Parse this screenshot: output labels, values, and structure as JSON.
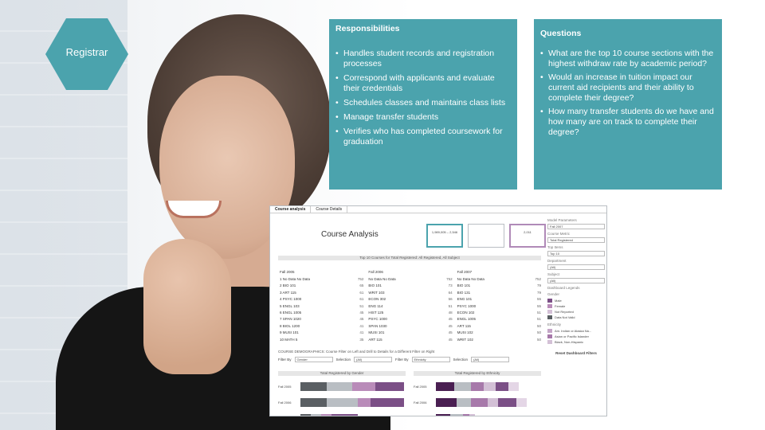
{
  "role": {
    "label": "Registrar"
  },
  "responsibilities": {
    "title": "Responsibilities",
    "items": [
      "Handles student records and registration processes",
      "Correspond with applicants and evaluate their credentials",
      "Schedules classes and maintains class lists",
      "Manage transfer students",
      "Verifies who has completed coursework for graduation"
    ]
  },
  "questions": {
    "title": "Questions",
    "items": [
      "What are the top 10 course sections with the highest withdraw rate by academic period?",
      "Would an increase in tuition impact our current aid recipients and their ability to complete their degree?",
      "How many transfer students do we have and how many are on track to complete their degree?"
    ]
  },
  "dashboard": {
    "tabs": [
      "Course analysis",
      "Course Details"
    ],
    "title": "Course Analysis",
    "kpis": [
      "1,989,005 – 2,546",
      "",
      "2,011"
    ],
    "top10_header": "Top 10 Courses for Total Registered: All Registered, All Subject",
    "columns": [
      {
        "head": "Fall 2005",
        "rows": [
          [
            "1  No Data No Data",
            "752"
          ],
          [
            "2  BIO 101",
            "65"
          ],
          [
            "3  ART 115",
            "61"
          ],
          [
            "4  PSYC 1000",
            "61"
          ],
          [
            "5  ENGL 103",
            "51"
          ],
          [
            "6  ENGL 1005",
            "45"
          ],
          [
            "7  SPAN 1020",
            "45"
          ],
          [
            "8  BIOL 1200",
            "41"
          ],
          [
            "9  MUSI 101",
            "41"
          ],
          [
            "10 MATH 5",
            "35"
          ]
        ]
      },
      {
        "head": "Fall 2006",
        "rows": [
          [
            "No Data No Data",
            "752"
          ],
          [
            "BIO 101",
            "73"
          ],
          [
            "WRIT 103",
            "64"
          ],
          [
            "ECON 302",
            "56"
          ],
          [
            "ENG 114",
            "51"
          ],
          [
            "HIST 125",
            "48"
          ],
          [
            "PSYC 1000",
            "45"
          ],
          [
            "SPAN 1030",
            "45"
          ],
          [
            "MUSI 101",
            "45"
          ],
          [
            "ART 115",
            "45"
          ]
        ]
      },
      {
        "head": "Fall 2007",
        "rows": [
          [
            "No Data No Data",
            "752"
          ],
          [
            "BIO 101",
            "79"
          ],
          [
            "BIO 131",
            "79"
          ],
          [
            "ENG 101",
            "55"
          ],
          [
            "PSYC 1000",
            "55"
          ],
          [
            "ECON 102",
            "51"
          ],
          [
            "ENGL 1005",
            "51"
          ],
          [
            "ART 115",
            "50"
          ],
          [
            "MUSI 102",
            "50"
          ],
          [
            "WRIT 102",
            "50"
          ]
        ]
      }
    ],
    "filters_caption": "COURSE DEMOGRAPHICS: Course Filter on Left and Drill to Details for a Different Filter on Right",
    "filters": [
      {
        "label": "Filter By",
        "value": "Gender"
      },
      {
        "label": "Selection",
        "value": "(All)"
      },
      {
        "label": "Filter By",
        "value": "Ethnicity"
      },
      {
        "label": "Selection",
        "value": "(All)"
      }
    ],
    "gender_chart": {
      "title": "Total Registered by Gender",
      "rows": [
        {
          "label": "Fall 2005",
          "segments": [
            0.25,
            0.25,
            0.22,
            0.28
          ]
        },
        {
          "label": "Fall 2006",
          "segments": [
            0.25,
            0.3,
            0.13,
            0.32
          ]
        },
        {
          "label": "Fall 2007",
          "segments": [
            0.1,
            0.1,
            0.1,
            0.25
          ]
        }
      ],
      "colors": [
        "#5a5f63",
        "#b9bec3",
        "#b98bb9",
        "#7b4f86"
      ]
    },
    "ethnicity_chart": {
      "title": "Total Registered by Ethnicity",
      "rows": [
        {
          "label": "Fall 2005",
          "segments": [
            0.18,
            0.16,
            0.12,
            0.12,
            0.12,
            0.1
          ]
        },
        {
          "label": "Fall 2006",
          "segments": [
            0.2,
            0.14,
            0.16,
            0.1,
            0.18,
            0.1
          ]
        },
        {
          "label": "Fall 2007",
          "segments": [
            0.14,
            0.12,
            0.06,
            0.06
          ]
        }
      ],
      "colors": [
        "#4a1f52",
        "#b9bec3",
        "#a779aa",
        "#d3c0d6",
        "#7b4f86",
        "#e4d6e6"
      ]
    },
    "side": {
      "title": "Model Parameters",
      "period_label": "Fall 2007",
      "course_metric_title": "Course Metric",
      "course_metric_value": "Total Registered",
      "top_title": "Top Items",
      "top_value": "Top 10",
      "department_title": "Department",
      "department_value": "(All)",
      "subject_title": "Subject",
      "subject_value": "(All)",
      "legends_title": "Dashboard Legends",
      "gender_title": "Gender",
      "gender_items": [
        {
          "name": "Male",
          "color": "#7b4f86"
        },
        {
          "name": "Female",
          "color": "#b98bb9"
        },
        {
          "name": "Not Reported",
          "color": "#d3c0d6"
        },
        {
          "name": "Data Not Valid",
          "color": "#5a5f63"
        }
      ],
      "ethnicity_title": "Ethnicity",
      "ethnicity_items": [
        {
          "name": "Am. Indian or Alaska Na...",
          "color": "#c4a6c7"
        },
        {
          "name": "Asian or Pacific Islander",
          "color": "#a779aa"
        },
        {
          "name": "Black, Non-Hispanic",
          "color": "#d3c0d6"
        }
      ],
      "reset_label": "Reset Dashboard Filters"
    }
  }
}
